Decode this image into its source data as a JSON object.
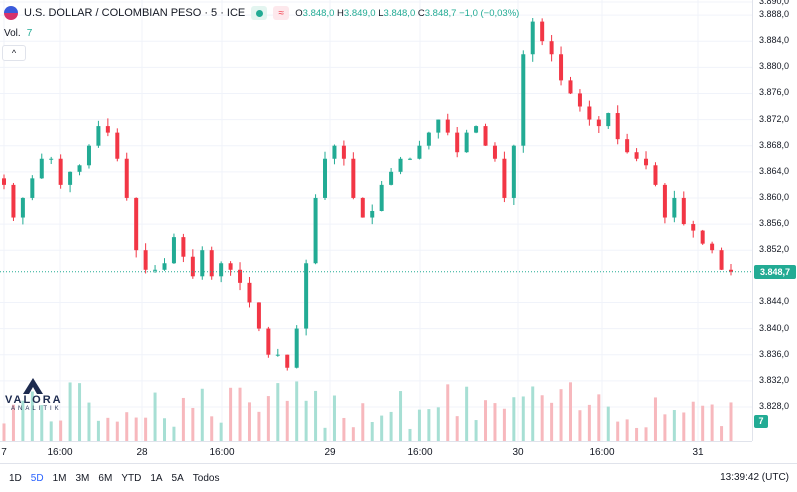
{
  "header": {
    "symbol_title": "U.S. DOLLAR / COLOMBIAN PESO · 5 · ICE",
    "wave_icon": "≈",
    "ohlc": {
      "o_label": "O",
      "o": "3.848,0",
      "h_label": "H",
      "h": "3.849,0",
      "l_label": "L",
      "l": "3.848,0",
      "c_label": "C",
      "c": "3.848,7",
      "change": "−1,0 (−0,03%)"
    }
  },
  "volume_legend": {
    "label": "Vol.",
    "value": "7"
  },
  "collapse_icon": "^",
  "logo": {
    "brand": "VALORA",
    "sub": "ANALITIK"
  },
  "price_axis": {
    "ticks": [
      "3.890,0",
      "3.888,0",
      "3.884,0",
      "3.880,0",
      "3.876,0",
      "3.872,0",
      "3.868,0",
      "3.864,0",
      "3.860,0",
      "3.856,0",
      "3.852,0",
      "3.844,0",
      "3.840,0",
      "3.836,0",
      "3.832,0",
      "3.828,0"
    ],
    "last_price": "3.848,7",
    "volume_badge": "7"
  },
  "time_axis": {
    "labels": [
      "7",
      "16:00",
      "28",
      "16:00",
      "29",
      "16:00",
      "30",
      "16:00",
      "31"
    ]
  },
  "bottom_bar": {
    "ranges": [
      "1D",
      "5D",
      "1M",
      "3M",
      "6M",
      "YTD",
      "1A",
      "5A",
      "Todos"
    ],
    "active": "5D",
    "clock": "13:39:42 (UTC)"
  },
  "colors": {
    "up": "#22ab94",
    "down": "#f23645",
    "up_volume": "#a7dfd4",
    "down_volume": "#f7b8bd",
    "grid": "#f0f3fa"
  },
  "chart_data": {
    "type": "candlestick",
    "y_unit": "COP per USD",
    "ylim": [
      3826.0,
      3890.0
    ],
    "x_labels": [
      "7",
      "16:00",
      "28",
      "16:00",
      "29",
      "16:00",
      "30",
      "16:00",
      "31"
    ],
    "close_path": [
      3862,
      3857,
      3860,
      3863,
      3866,
      3866,
      3862,
      3864,
      3865,
      3868,
      3871,
      3870,
      3866,
      3860,
      3852,
      3849,
      3849,
      3850,
      3854,
      3851,
      3848,
      3852,
      3848,
      3850,
      3849,
      3847,
      3844,
      3840,
      3836,
      3836,
      3834,
      3840,
      3850,
      3860,
      3866,
      3868,
      3866,
      3860,
      3857,
      3858,
      3862,
      3864,
      3866,
      3866,
      3868,
      3870,
      3872,
      3870,
      3867,
      3870,
      3871,
      3868,
      3866,
      3860,
      3868,
      3882,
      3887,
      3884,
      3882,
      3878,
      3876,
      3874,
      3872,
      3871,
      3873,
      3869,
      3867,
      3866,
      3865,
      3862,
      3857,
      3860,
      3856,
      3855,
      3853,
      3852,
      3849,
      3848.7
    ],
    "last_price": 3848.7,
    "volume_last": 7,
    "grid": true
  }
}
